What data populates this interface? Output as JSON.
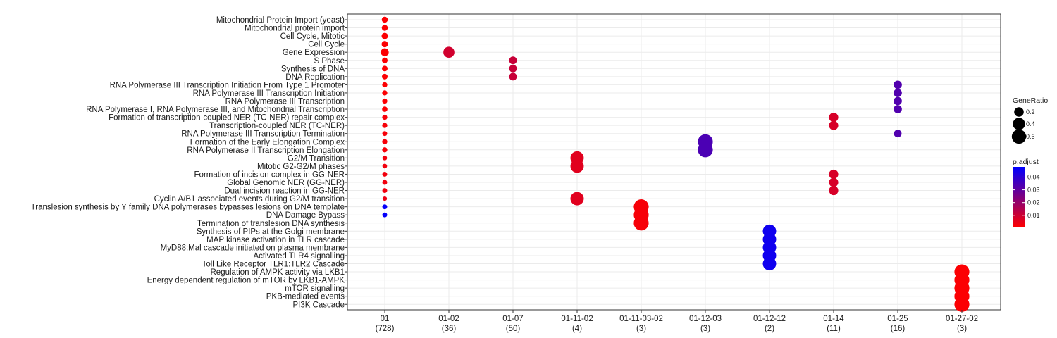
{
  "chart_data": {
    "type": "scatter",
    "title": "",
    "xlabel": "",
    "ylabel": "",
    "grid": true,
    "legend_position": "right",
    "clusters": [
      {
        "name": "01",
        "count": "(728)"
      },
      {
        "name": "01-02",
        "count": "(36)"
      },
      {
        "name": "01-07",
        "count": "(50)"
      },
      {
        "name": "01-11-02",
        "count": "(4)"
      },
      {
        "name": "01-11-03-02",
        "count": "(3)"
      },
      {
        "name": "01-12-03",
        "count": "(3)"
      },
      {
        "name": "01-12-12",
        "count": "(2)"
      },
      {
        "name": "01-14",
        "count": "(11)"
      },
      {
        "name": "01-25",
        "count": "(16)"
      },
      {
        "name": "01-27-02",
        "count": "(3)"
      }
    ],
    "terms": [
      "Mitochondrial Protein Import (yeast)",
      "Mitochondrial protein import",
      "Cell Cycle, Mitotic",
      "Cell Cycle",
      "Gene Expression",
      "S Phase",
      "Synthesis of DNA",
      "DNA Replication",
      "RNA Polymerase III Transcription Initiation From Type 1 Promoter",
      "RNA Polymerase III Transcription Initiation",
      "RNA Polymerase III Transcription",
      "RNA Polymerase I, RNA Polymerase III, and Mitochondrial Transcription",
      "Formation of transcription-coupled NER (TC-NER) repair complex",
      "Transcription-coupled NER (TC-NER)",
      "RNA Polymerase III Transcription Termination",
      "Formation of the Early Elongation Complex",
      "RNA Polymerase II Transcription Elongation",
      "G2/M Transition",
      "Mitotic G2-G2/M phases",
      "Formation of incision complex in GG-NER",
      "Global Genomic NER (GG-NER)",
      "Dual incision reaction in GG-NER",
      "Cyclin A/B1 associated events during G2/M transition",
      "Translesion synthesis by Y family DNA polymerases bypasses lesions on DNA template",
      "DNA Damage Bypass",
      "Termination of translesion DNA synthesis",
      "Synthesis of PIPs at the Golgi membrane",
      "MAP kinase activation in TLR cascade",
      "MyD88:Mal cascade initiated on plasma membrane",
      "Activated TLR4 signalling",
      "Toll Like Receptor TLR1:TLR2 Cascade",
      "Regulation of AMPK activity via LKB1",
      "Energy dependent regulation of mTOR by LKB1-AMPK",
      "mTOR signalling",
      "PKB-mediated events",
      "PI3K Cascade"
    ],
    "points": [
      {
        "cluster": "01",
        "term": "Mitochondrial Protein Import (yeast)",
        "gene_ratio": 0.04,
        "p_adjust": 0.001
      },
      {
        "cluster": "01",
        "term": "Mitochondrial protein import",
        "gene_ratio": 0.04,
        "p_adjust": 0.001
      },
      {
        "cluster": "01",
        "term": "Cell Cycle, Mitotic",
        "gene_ratio": 0.05,
        "p_adjust": 0.001
      },
      {
        "cluster": "01",
        "term": "Cell Cycle",
        "gene_ratio": 0.05,
        "p_adjust": 0.001
      },
      {
        "cluster": "01",
        "term": "Gene Expression",
        "gene_ratio": 0.11,
        "p_adjust": 0.001
      },
      {
        "cluster": "01",
        "term": "S Phase",
        "gene_ratio": 0.03,
        "p_adjust": 0.001
      },
      {
        "cluster": "01",
        "term": "Synthesis of DNA",
        "gene_ratio": 0.03,
        "p_adjust": 0.001
      },
      {
        "cluster": "01",
        "term": "DNA Replication",
        "gene_ratio": 0.03,
        "p_adjust": 0.001
      },
      {
        "cluster": "01",
        "term": "RNA Polymerase III Transcription Initiation From Type 1 Promoter",
        "gene_ratio": 0.02,
        "p_adjust": 0.001
      },
      {
        "cluster": "01",
        "term": "RNA Polymerase III Transcription Initiation",
        "gene_ratio": 0.02,
        "p_adjust": 0.001
      },
      {
        "cluster": "01",
        "term": "RNA Polymerase III Transcription",
        "gene_ratio": 0.02,
        "p_adjust": 0.001
      },
      {
        "cluster": "01",
        "term": "RNA Polymerase I, RNA Polymerase III, and Mitochondrial Transcription",
        "gene_ratio": 0.025,
        "p_adjust": 0.001
      },
      {
        "cluster": "01",
        "term": "Formation of transcription-coupled NER (TC-NER) repair complex",
        "gene_ratio": 0.02,
        "p_adjust": 0.002
      },
      {
        "cluster": "01",
        "term": "Transcription-coupled NER (TC-NER)",
        "gene_ratio": 0.02,
        "p_adjust": 0.002
      },
      {
        "cluster": "01",
        "term": "RNA Polymerase III Transcription Termination",
        "gene_ratio": 0.015,
        "p_adjust": 0.002
      },
      {
        "cluster": "01",
        "term": "Formation of the Early Elongation Complex",
        "gene_ratio": 0.02,
        "p_adjust": 0.002
      },
      {
        "cluster": "01",
        "term": "RNA Polymerase II Transcription Elongation",
        "gene_ratio": 0.02,
        "p_adjust": 0.002
      },
      {
        "cluster": "01",
        "term": "G2/M Transition",
        "gene_ratio": 0.012,
        "p_adjust": 0.003
      },
      {
        "cluster": "01",
        "term": "Mitotic G2-G2/M phases",
        "gene_ratio": 0.012,
        "p_adjust": 0.003
      },
      {
        "cluster": "01",
        "term": "Formation of incision complex in GG-NER",
        "gene_ratio": 0.015,
        "p_adjust": 0.003
      },
      {
        "cluster": "01",
        "term": "Global Genomic NER (GG-NER)",
        "gene_ratio": 0.015,
        "p_adjust": 0.003
      },
      {
        "cluster": "01",
        "term": "Dual incision reaction in GG-NER",
        "gene_ratio": 0.015,
        "p_adjust": 0.003
      },
      {
        "cluster": "01",
        "term": "Cyclin A/B1 associated events during G2/M transition",
        "gene_ratio": 0.008,
        "p_adjust": 0.004
      },
      {
        "cluster": "01",
        "term": "Translesion synthesis by Y family DNA polymerases bypasses lesions on DNA template",
        "gene_ratio": 0.015,
        "p_adjust": 0.047
      },
      {
        "cluster": "01",
        "term": "DNA Damage Bypass",
        "gene_ratio": 0.015,
        "p_adjust": 0.047
      },
      {
        "cluster": "01-02",
        "term": "Gene Expression",
        "gene_ratio": 0.3,
        "p_adjust": 0.009
      },
      {
        "cluster": "01-07",
        "term": "S Phase",
        "gene_ratio": 0.1,
        "p_adjust": 0.011
      },
      {
        "cluster": "01-07",
        "term": "Synthesis of DNA",
        "gene_ratio": 0.1,
        "p_adjust": 0.011
      },
      {
        "cluster": "01-07",
        "term": "DNA Replication",
        "gene_ratio": 0.1,
        "p_adjust": 0.011
      },
      {
        "cluster": "01-11-02",
        "term": "G2/M Transition",
        "gene_ratio": 0.5,
        "p_adjust": 0.006
      },
      {
        "cluster": "01-11-02",
        "term": "Mitotic G2-G2/M phases",
        "gene_ratio": 0.5,
        "p_adjust": 0.006
      },
      {
        "cluster": "01-11-02",
        "term": "Cyclin A/B1 associated events during G2/M transition",
        "gene_ratio": 0.5,
        "p_adjust": 0.006
      },
      {
        "cluster": "01-11-03-02",
        "term": "Translesion synthesis by Y family DNA polymerases bypasses lesions on DNA template",
        "gene_ratio": 0.667,
        "p_adjust": 0.002
      },
      {
        "cluster": "01-11-03-02",
        "term": "DNA Damage Bypass",
        "gene_ratio": 0.667,
        "p_adjust": 0.002
      },
      {
        "cluster": "01-11-03-02",
        "term": "Termination of translesion DNA synthesis",
        "gene_ratio": 0.667,
        "p_adjust": 0.002
      },
      {
        "cluster": "01-12-03",
        "term": "Formation of the Early Elongation Complex",
        "gene_ratio": 0.667,
        "p_adjust": 0.034
      },
      {
        "cluster": "01-12-03",
        "term": "RNA Polymerase II Transcription Elongation",
        "gene_ratio": 0.667,
        "p_adjust": 0.034
      },
      {
        "cluster": "01-12-12",
        "term": "Synthesis of PIPs at the Golgi membrane",
        "gene_ratio": 0.5,
        "p_adjust": 0.045
      },
      {
        "cluster": "01-12-12",
        "term": "MAP kinase activation in TLR cascade",
        "gene_ratio": 0.5,
        "p_adjust": 0.045
      },
      {
        "cluster": "01-12-12",
        "term": "MyD88:Mal cascade initiated on plasma membrane",
        "gene_ratio": 0.5,
        "p_adjust": 0.045
      },
      {
        "cluster": "01-12-12",
        "term": "Activated TLR4 signalling",
        "gene_ratio": 0.5,
        "p_adjust": 0.045
      },
      {
        "cluster": "01-12-12",
        "term": "Toll Like Receptor TLR1:TLR2 Cascade",
        "gene_ratio": 0.5,
        "p_adjust": 0.045
      },
      {
        "cluster": "01-14",
        "term": "Formation of transcription-coupled NER (TC-NER) repair complex",
        "gene_ratio": 0.18,
        "p_adjust": 0.008
      },
      {
        "cluster": "01-14",
        "term": "Transcription-coupled NER (TC-NER)",
        "gene_ratio": 0.18,
        "p_adjust": 0.008
      },
      {
        "cluster": "01-14",
        "term": "Formation of incision complex in GG-NER",
        "gene_ratio": 0.18,
        "p_adjust": 0.008
      },
      {
        "cluster": "01-14",
        "term": "Global Genomic NER (GG-NER)",
        "gene_ratio": 0.18,
        "p_adjust": 0.008
      },
      {
        "cluster": "01-14",
        "term": "Dual incision reaction in GG-NER",
        "gene_ratio": 0.18,
        "p_adjust": 0.008
      },
      {
        "cluster": "01-25",
        "term": "RNA Polymerase III Transcription Initiation From Type 1 Promoter",
        "gene_ratio": 0.125,
        "p_adjust": 0.033
      },
      {
        "cluster": "01-25",
        "term": "RNA Polymerase III Transcription Initiation",
        "gene_ratio": 0.125,
        "p_adjust": 0.033
      },
      {
        "cluster": "01-25",
        "term": "RNA Polymerase III Transcription",
        "gene_ratio": 0.125,
        "p_adjust": 0.033
      },
      {
        "cluster": "01-25",
        "term": "RNA Polymerase I, RNA Polymerase III, and Mitochondrial Transcription",
        "gene_ratio": 0.125,
        "p_adjust": 0.033
      },
      {
        "cluster": "01-25",
        "term": "RNA Polymerase III Transcription Termination",
        "gene_ratio": 0.1,
        "p_adjust": 0.033
      },
      {
        "cluster": "01-27-02",
        "term": "Regulation of AMPK activity via LKB1",
        "gene_ratio": 0.667,
        "p_adjust": 0.001
      },
      {
        "cluster": "01-27-02",
        "term": "Energy dependent regulation of mTOR by LKB1-AMPK",
        "gene_ratio": 0.667,
        "p_adjust": 0.001
      },
      {
        "cluster": "01-27-02",
        "term": "mTOR signalling",
        "gene_ratio": 0.667,
        "p_adjust": 0.001
      },
      {
        "cluster": "01-27-02",
        "term": "PKB-mediated events",
        "gene_ratio": 0.667,
        "p_adjust": 0.001
      },
      {
        "cluster": "01-27-02",
        "term": "PI3K Cascade",
        "gene_ratio": 0.667,
        "p_adjust": 0.001
      }
    ],
    "size_legend": {
      "title": "GeneRatio",
      "breaks": [
        0.2,
        0.4,
        0.6
      ],
      "labels": [
        "0.2",
        "0.4",
        "0.6"
      ]
    },
    "color_legend": {
      "title": "p.adjust",
      "low_color": "#ff0000",
      "high_color": "#0000ff",
      "range": [
        0.0005,
        0.048
      ],
      "breaks": [
        0.01,
        0.02,
        0.03,
        0.04
      ],
      "labels": [
        "0.01",
        "0.02",
        "0.03",
        "0.04"
      ]
    }
  }
}
